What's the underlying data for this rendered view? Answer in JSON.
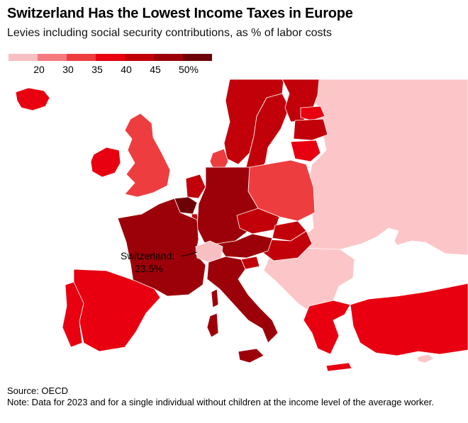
{
  "title": "Switzerland Has the Lowest Income Taxes in Europe",
  "subtitle": "Levies including social security contributions, as % of labor costs",
  "legend": {
    "colors": [
      "#f7bfc2",
      "#f47a80",
      "#ee3d3f",
      "#e80010",
      "#c20009",
      "#9c0009",
      "#6e0007"
    ],
    "labels": [
      "20",
      "30",
      "35",
      "40",
      "45",
      "50%"
    ]
  },
  "colors": {
    "non_oecd": "#fcc6c8",
    "sea": "#ffffff",
    "border": "#ffffff"
  },
  "countries": [
    {
      "name": "iceland",
      "bin": 3
    },
    {
      "name": "ireland",
      "bin": 3
    },
    {
      "name": "uk",
      "bin": 2
    },
    {
      "name": "norway",
      "bin": 4
    },
    {
      "name": "sweden",
      "bin": 4
    },
    {
      "name": "finland",
      "bin": 4
    },
    {
      "name": "denmark",
      "bin": 2
    },
    {
      "name": "estonia",
      "bin": 3
    },
    {
      "name": "latvia",
      "bin": 4
    },
    {
      "name": "lithuania",
      "bin": 3
    },
    {
      "name": "poland",
      "bin": 2
    },
    {
      "name": "germany",
      "bin": 5
    },
    {
      "name": "netherlands",
      "bin": 4
    },
    {
      "name": "belgium",
      "bin": 6
    },
    {
      "name": "luxembourg",
      "bin": 4
    },
    {
      "name": "france",
      "bin": 5
    },
    {
      "name": "switzerland",
      "bin": 0
    },
    {
      "name": "austria",
      "bin": 5
    },
    {
      "name": "czechia",
      "bin": 4
    },
    {
      "name": "slovakia",
      "bin": 4
    },
    {
      "name": "hungary",
      "bin": 4
    },
    {
      "name": "slovenia",
      "bin": 4
    },
    {
      "name": "italy",
      "bin": 5
    },
    {
      "name": "spain",
      "bin": 3
    },
    {
      "name": "portugal",
      "bin": 3
    },
    {
      "name": "greece",
      "bin": 3
    },
    {
      "name": "turkey",
      "bin": 3
    }
  ],
  "annotation": {
    "label": "Switzerland:",
    "value": "23.5%"
  },
  "source": "Source: OECD",
  "note": "Note: Data for 2023 and for a single individual without children at the income level of the average worker."
}
